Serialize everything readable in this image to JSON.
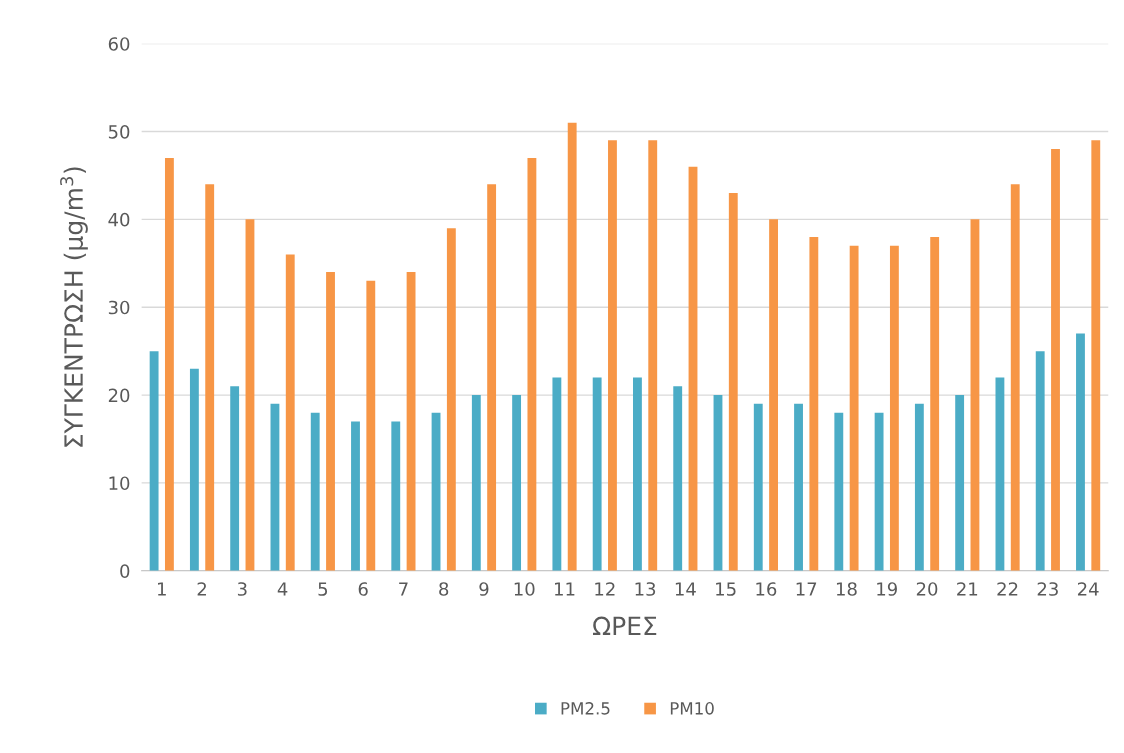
{
  "chart_data": {
    "type": "bar",
    "xlabel": "ΩΡΕΣ",
    "ylabel": "ΣΥΓΚΕΝΤΡΩΣΗ (μg/m$^{3}$)",
    "categories": [
      "1",
      "2",
      "3",
      "4",
      "5",
      "6",
      "7",
      "8",
      "9",
      "10",
      "11",
      "12",
      "13",
      "14",
      "15",
      "16",
      "17",
      "18",
      "19",
      "20",
      "21",
      "22",
      "23",
      "24"
    ],
    "series": [
      {
        "name": "PM2.5",
        "color": "#4bacc6",
        "values": [
          25,
          23,
          21,
          19,
          18,
          17,
          17,
          18,
          20,
          20,
          22,
          22,
          22,
          21,
          20,
          19,
          19,
          18,
          18,
          19,
          20,
          22,
          25,
          27
        ]
      },
      {
        "name": "PM10",
        "color": "#f79646",
        "values": [
          47,
          44,
          40,
          36,
          34,
          33,
          34,
          39,
          44,
          47,
          51,
          49,
          49,
          46,
          43,
          40,
          38,
          37,
          37,
          38,
          40,
          44,
          48,
          49
        ]
      }
    ],
    "ylim": [
      0,
      60
    ],
    "yticks": [
      0,
      10,
      20,
      30,
      40,
      50,
      60
    ],
    "grid": "y",
    "legend": "bottom"
  }
}
